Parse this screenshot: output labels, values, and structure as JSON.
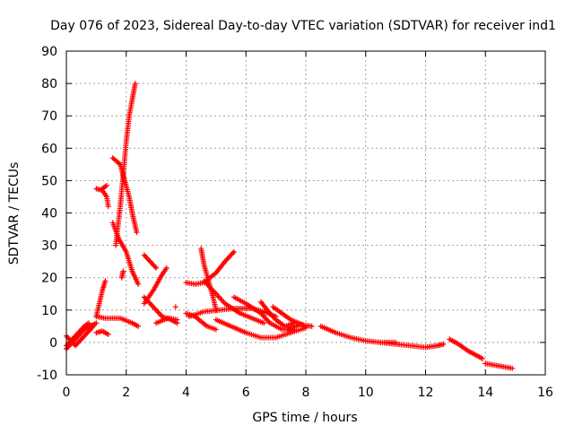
{
  "chart_data": {
    "type": "scatter",
    "title": "Day 076 of 2023, Sidereal Day-to-day VTEC variation (SDTVAR) for receiver ind1",
    "xlabel": "GPS time / hours",
    "ylabel": "SDTVAR / TECUs",
    "xlim": [
      0,
      16
    ],
    "ylim": [
      -10,
      90
    ],
    "xticks": [
      0,
      2,
      4,
      6,
      8,
      10,
      12,
      14,
      16
    ],
    "yticks": [
      -10,
      0,
      10,
      20,
      30,
      40,
      50,
      60,
      70,
      80,
      90
    ],
    "grid": true,
    "marker": "+",
    "color": "#ff0000",
    "tracks": [
      {
        "name": "t1",
        "points": [
          [
            0.0,
            -2
          ],
          [
            0.2,
            0
          ],
          [
            0.4,
            2
          ],
          [
            0.6,
            4
          ],
          [
            0.8,
            5
          ],
          [
            1.0,
            6
          ]
        ]
      },
      {
        "name": "t2",
        "points": [
          [
            0.0,
            2
          ],
          [
            0.3,
            -1
          ],
          [
            0.5,
            1
          ],
          [
            0.7,
            3
          ],
          [
            0.9,
            5
          ]
        ]
      },
      {
        "name": "t3",
        "points": [
          [
            0.0,
            -1
          ],
          [
            0.2,
            1
          ],
          [
            0.4,
            3
          ],
          [
            0.6,
            5
          ],
          [
            0.75,
            6
          ]
        ]
      },
      {
        "name": "t4",
        "points": [
          [
            1.0,
            8
          ],
          [
            1.1,
            12
          ],
          [
            1.2,
            16
          ],
          [
            1.3,
            19
          ]
        ]
      },
      {
        "name": "t5",
        "points": [
          [
            1.0,
            47.5
          ],
          [
            1.2,
            47
          ],
          [
            1.35,
            45
          ],
          [
            1.4,
            42
          ]
        ]
      },
      {
        "name": "t6",
        "points": [
          [
            1.2,
            47.5
          ],
          [
            1.35,
            48.5
          ]
        ]
      },
      {
        "name": "t7",
        "points": [
          [
            1.65,
            30
          ],
          [
            1.8,
            42
          ],
          [
            1.9,
            52
          ],
          [
            2.0,
            62
          ],
          [
            2.1,
            70
          ],
          [
            2.2,
            75
          ],
          [
            2.3,
            80
          ]
        ]
      },
      {
        "name": "t8",
        "points": [
          [
            1.55,
            57
          ],
          [
            1.8,
            55
          ],
          [
            1.95,
            50
          ],
          [
            2.1,
            45
          ],
          [
            2.2,
            40
          ],
          [
            2.35,
            34
          ]
        ]
      },
      {
        "name": "t9",
        "points": [
          [
            1.55,
            37
          ],
          [
            1.75,
            32
          ],
          [
            2.0,
            28
          ],
          [
            2.2,
            22
          ],
          [
            2.4,
            18
          ]
        ]
      },
      {
        "name": "t10",
        "points": [
          [
            1.85,
            20
          ],
          [
            1.9,
            22
          ]
        ]
      },
      {
        "name": "t11",
        "points": [
          [
            1.0,
            8
          ],
          [
            1.3,
            7.5
          ],
          [
            1.8,
            7.5
          ],
          [
            2.2,
            6
          ],
          [
            2.4,
            5
          ]
        ]
      },
      {
        "name": "t12",
        "points": [
          [
            1.0,
            3
          ],
          [
            1.2,
            3.5
          ],
          [
            1.4,
            2.5
          ]
        ]
      },
      {
        "name": "t13",
        "points": [
          [
            2.6,
            27
          ],
          [
            2.8,
            25
          ],
          [
            3.0,
            23
          ]
        ]
      },
      {
        "name": "t14",
        "points": [
          [
            2.6,
            12
          ],
          [
            2.9,
            16
          ],
          [
            3.2,
            21
          ],
          [
            3.35,
            23
          ]
        ]
      },
      {
        "name": "t15",
        "points": [
          [
            2.6,
            14
          ],
          [
            2.9,
            11
          ],
          [
            3.2,
            8
          ],
          [
            3.5,
            7
          ],
          [
            3.7,
            6
          ]
        ]
      },
      {
        "name": "t16",
        "points": [
          [
            3.0,
            6
          ],
          [
            3.4,
            7.5
          ],
          [
            3.7,
            7
          ]
        ]
      },
      {
        "name": "t17",
        "points": [
          [
            3.65,
            11
          ]
        ]
      },
      {
        "name": "t18",
        "points": [
          [
            4.0,
            9
          ],
          [
            4.3,
            8
          ],
          [
            4.7,
            5
          ],
          [
            5.0,
            4
          ]
        ]
      },
      {
        "name": "t19",
        "points": [
          [
            4.5,
            29
          ],
          [
            4.6,
            24
          ],
          [
            4.75,
            19
          ],
          [
            4.9,
            14
          ],
          [
            5.0,
            10
          ]
        ]
      },
      {
        "name": "t20",
        "points": [
          [
            4.0,
            18.5
          ],
          [
            4.3,
            18
          ],
          [
            4.6,
            18.5
          ],
          [
            5.0,
            21.5
          ],
          [
            5.3,
            25
          ],
          [
            5.5,
            27
          ],
          [
            5.6,
            28
          ]
        ]
      },
      {
        "name": "t21",
        "points": [
          [
            4.6,
            19
          ],
          [
            4.9,
            16
          ],
          [
            5.3,
            12
          ],
          [
            5.8,
            9
          ],
          [
            6.2,
            7.5
          ],
          [
            6.6,
            6
          ]
        ]
      },
      {
        "name": "t22",
        "points": [
          [
            4.1,
            8
          ],
          [
            4.6,
            9.5
          ],
          [
            5.1,
            10
          ],
          [
            5.6,
            10.5
          ],
          [
            6.2,
            10.5
          ],
          [
            6.6,
            9.5
          ],
          [
            7.0,
            8
          ]
        ]
      },
      {
        "name": "t23",
        "points": [
          [
            5.6,
            14
          ],
          [
            6.0,
            12
          ],
          [
            6.5,
            9
          ],
          [
            6.8,
            6
          ],
          [
            7.2,
            4
          ],
          [
            7.6,
            4
          ]
        ]
      },
      {
        "name": "t24",
        "points": [
          [
            5.0,
            7
          ],
          [
            5.5,
            5
          ],
          [
            6.0,
            3
          ],
          [
            6.5,
            1.5
          ],
          [
            7.0,
            1.5
          ],
          [
            7.5,
            3
          ],
          [
            8.0,
            4.5
          ]
        ]
      },
      {
        "name": "t25",
        "points": [
          [
            6.5,
            12.5
          ],
          [
            6.8,
            9
          ],
          [
            7.0,
            7
          ],
          [
            7.3,
            5
          ],
          [
            7.6,
            6
          ]
        ]
      },
      {
        "name": "t26",
        "points": [
          [
            6.9,
            11
          ],
          [
            7.2,
            9
          ],
          [
            7.5,
            7
          ],
          [
            7.9,
            5.5
          ]
        ]
      },
      {
        "name": "t27",
        "points": [
          [
            7.4,
            4
          ],
          [
            7.8,
            5.5
          ],
          [
            8.2,
            5
          ]
        ]
      },
      {
        "name": "t28",
        "points": [
          [
            8.5,
            5
          ],
          [
            9.0,
            3
          ],
          [
            9.5,
            1.5
          ],
          [
            10.0,
            0.5
          ],
          [
            10.5,
            0
          ],
          [
            11.0,
            0
          ]
        ]
      },
      {
        "name": "t29",
        "points": [
          [
            10.5,
            0
          ],
          [
            11.0,
            -0.5
          ],
          [
            11.5,
            -1
          ],
          [
            12.0,
            -1.5
          ],
          [
            12.4,
            -1
          ],
          [
            12.6,
            -0.5
          ]
        ]
      },
      {
        "name": "t30",
        "points": [
          [
            12.8,
            1
          ],
          [
            13.1,
            -0.5
          ],
          [
            13.4,
            -2.5
          ],
          [
            13.7,
            -4
          ],
          [
            13.9,
            -5
          ]
        ]
      },
      {
        "name": "t31",
        "points": [
          [
            14.0,
            -6.5
          ],
          [
            14.3,
            -7
          ],
          [
            14.6,
            -7.5
          ],
          [
            14.9,
            -8
          ]
        ]
      }
    ]
  }
}
